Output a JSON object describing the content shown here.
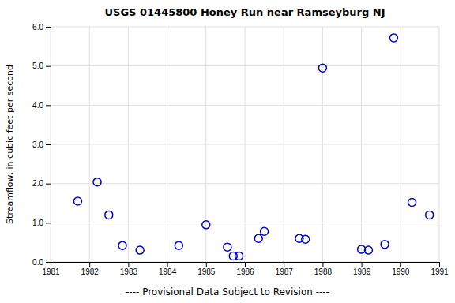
{
  "chart_data": {
    "type": "scatter",
    "title": "USGS 01445800 Honey Run near Ramseyburg NJ",
    "subtitle": "---- Provisional Data Subject to Revision ----",
    "ylabel": "Streamflow, in cubic feet per second",
    "x": [
      1981.7,
      1982.2,
      1982.5,
      1982.85,
      1983.3,
      1984.3,
      1985.0,
      1985.55,
      1985.7,
      1985.85,
      1986.35,
      1986.5,
      1987.4,
      1987.56,
      1988.0,
      1989.0,
      1989.18,
      1989.6,
      1990.3,
      1990.75,
      1989.83
    ],
    "values": [
      1.55,
      2.04,
      1.2,
      0.42,
      0.3,
      0.42,
      0.95,
      0.38,
      0.15,
      0.15,
      0.6,
      0.78,
      0.6,
      0.58,
      4.95,
      0.32,
      0.3,
      0.45,
      1.52,
      1.2,
      5.72
    ],
    "color": "#0000cc",
    "marker": "circle",
    "xlim": [
      1981,
      1991
    ],
    "ylim": [
      0.0,
      6.0
    ],
    "xticks": [
      1981,
      1982,
      1983,
      1984,
      1985,
      1986,
      1987,
      1988,
      1989,
      1990,
      1991
    ],
    "yticks": [
      {
        "value": 0.0,
        "label": "0.0"
      },
      {
        "value": 1.0,
        "label": "1.0"
      },
      {
        "value": 2.0,
        "label": "2.0"
      },
      {
        "value": 3.0,
        "label": "3.0"
      },
      {
        "value": 4.0,
        "label": "4.0"
      },
      {
        "value": 5.0,
        "label": "5.0"
      },
      {
        "value": 6.0,
        "label": "6.0"
      }
    ],
    "grid": true
  }
}
